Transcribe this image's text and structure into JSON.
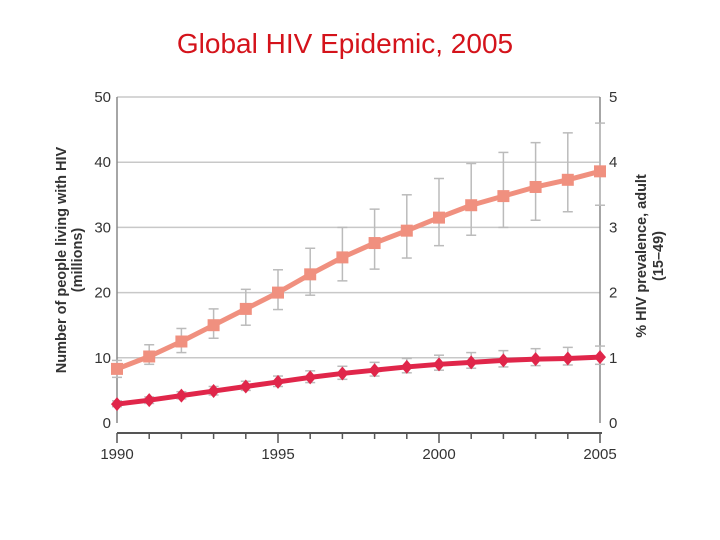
{
  "title": "Global HIV Epidemic, 2005",
  "chart_data": {
    "type": "line",
    "title": "Global HIV Epidemic, 2005",
    "x": [
      1990,
      1991,
      1992,
      1993,
      1994,
      1995,
      1996,
      1997,
      1998,
      1999,
      2000,
      2001,
      2002,
      2003,
      2004,
      2005
    ],
    "xlim": [
      1990,
      2005
    ],
    "x_ticks": [
      "1990",
      "1995",
      "2000",
      "2005"
    ],
    "ylabel": "Number of people living with HIV",
    "ylabel_unit": "(millions)",
    "ylim": [
      0,
      50
    ],
    "y_ticks": [
      "0",
      "10",
      "20",
      "30",
      "40",
      "50"
    ],
    "ylabel_right": "% HIV prevalence, adult",
    "ylabel_right_unit": "(15–49)",
    "ylim_right": [
      0,
      5
    ],
    "y_ticks_right": [
      "0",
      "1",
      "2",
      "3",
      "4",
      "5"
    ],
    "grid": true,
    "series": [
      {
        "axis": "left",
        "marker": "square",
        "color": "#f0907f",
        "values": [
          8.3,
          10.2,
          12.5,
          15.0,
          17.5,
          20.0,
          22.8,
          25.4,
          27.6,
          29.5,
          31.5,
          33.4,
          34.8,
          36.2,
          37.3,
          38.6
        ],
        "lower": [
          7.0,
          9.0,
          10.8,
          13.0,
          15.0,
          17.4,
          19.6,
          21.8,
          23.6,
          25.3,
          27.2,
          28.8,
          30.0,
          31.1,
          32.4,
          33.4
        ],
        "upper": [
          9.6,
          12.0,
          14.5,
          17.5,
          20.5,
          23.5,
          26.8,
          30.0,
          32.8,
          35.0,
          37.5,
          39.8,
          41.5,
          43.0,
          44.5,
          46.0
        ]
      },
      {
        "axis": "right",
        "marker": "diamond",
        "color": "#e0264a",
        "values": [
          0.29,
          0.35,
          0.42,
          0.49,
          0.56,
          0.63,
          0.7,
          0.76,
          0.81,
          0.86,
          0.9,
          0.93,
          0.96,
          0.98,
          0.99,
          1.01
        ],
        "lower": [
          0.25,
          0.3,
          0.37,
          0.43,
          0.5,
          0.56,
          0.62,
          0.67,
          0.72,
          0.77,
          0.81,
          0.84,
          0.86,
          0.88,
          0.89,
          0.9
        ],
        "upper": [
          0.34,
          0.4,
          0.48,
          0.56,
          0.64,
          0.72,
          0.8,
          0.87,
          0.93,
          0.99,
          1.04,
          1.08,
          1.11,
          1.14,
          1.16,
          1.18
        ]
      }
    ]
  }
}
